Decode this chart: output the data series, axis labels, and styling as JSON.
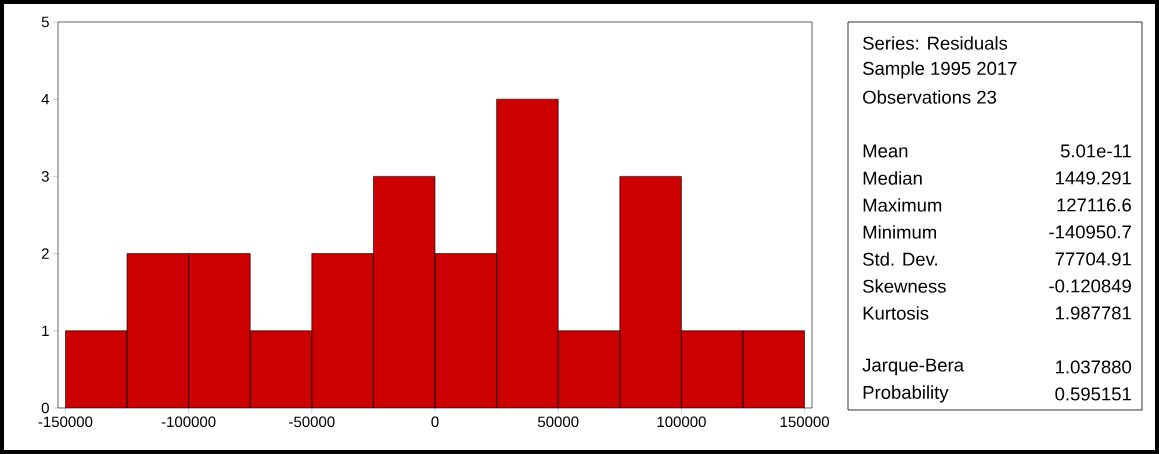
{
  "chart_data": {
    "type": "histogram",
    "bins": [
      -150000,
      -125000,
      -100000,
      -75000,
      -50000,
      -25000,
      0,
      25000,
      50000,
      75000,
      100000,
      125000,
      150000
    ],
    "values": [
      1,
      2,
      2,
      1,
      2,
      3,
      2,
      4,
      1,
      3,
      1,
      1
    ],
    "color": "#cc0000",
    "xlim": [
      -153000,
      153000
    ],
    "ylim": [
      0,
      5
    ],
    "xticks": [
      -150000,
      -100000,
      -50000,
      0,
      50000,
      100000,
      150000
    ],
    "yticks": [
      0,
      1,
      2,
      3,
      4,
      5
    ],
    "annotations": [
      "Series: Residuals",
      "Sample 1995 2017",
      "Observations 23",
      "Mean",
      "5.01e-11",
      "Median",
      "1449.291",
      "Maximum",
      "127116.6",
      "Minimum",
      "-140950.7",
      "Std. Dev.",
      "77704.91",
      "Skewness",
      "-0.120849",
      "Kurtosis",
      "1.987781",
      "Jarque-Bera",
      "1.037880",
      "Probability",
      "0.595151"
    ]
  }
}
